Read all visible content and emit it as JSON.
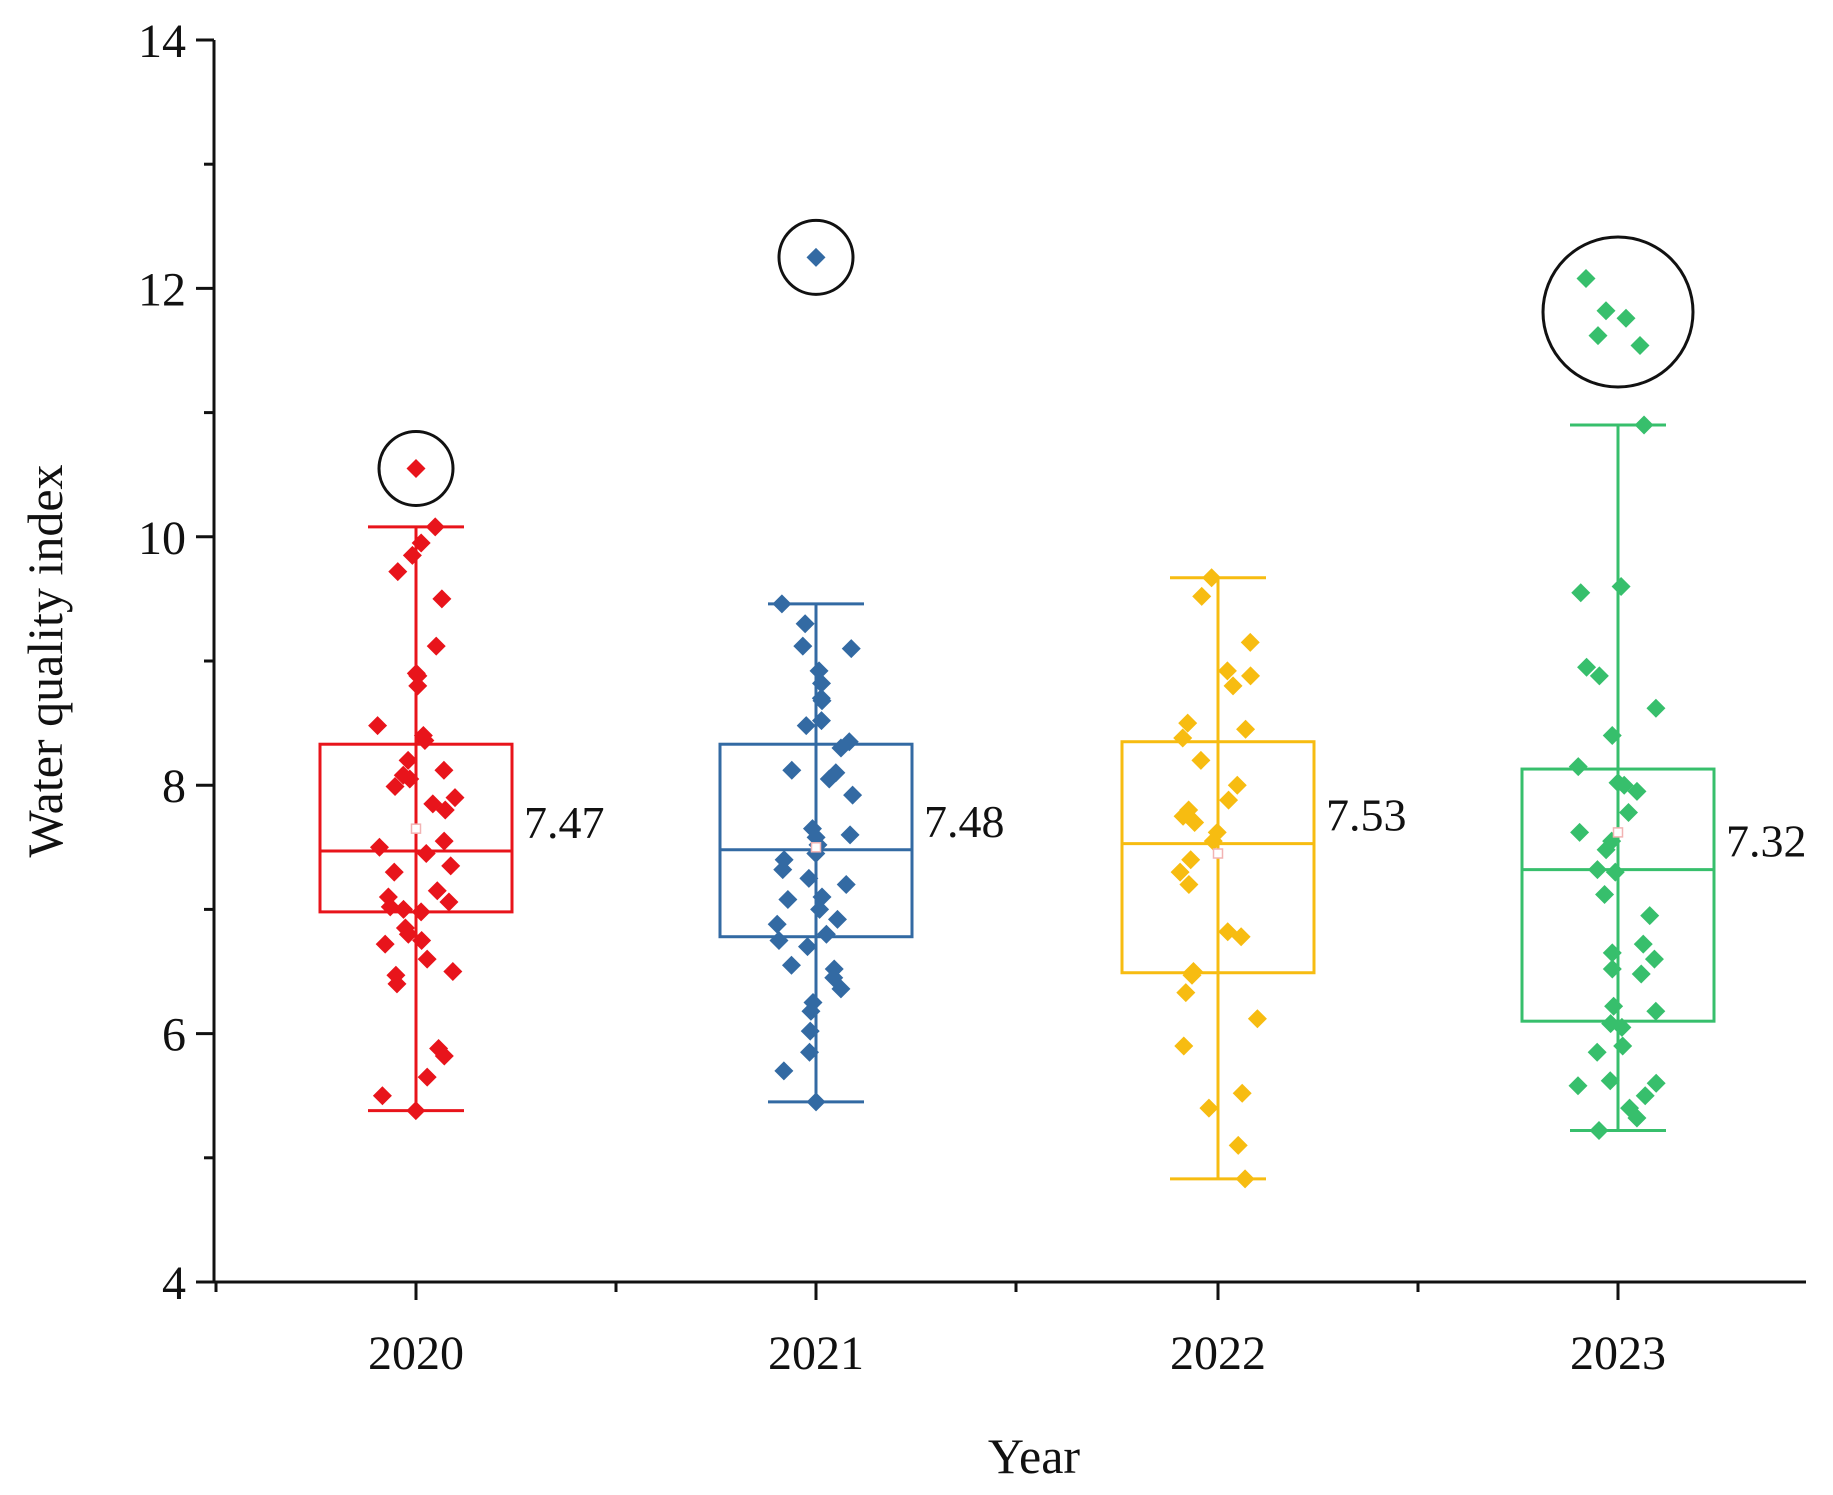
{
  "chart_data": {
    "type": "box",
    "title": "",
    "xlabel": "Year",
    "ylabel": "Water quality index",
    "ylim": [
      4,
      14
    ],
    "yticks": [
      "4",
      "6",
      "8",
      "10",
      "12",
      "14"
    ],
    "categories": [
      "2020",
      "2021",
      "2022",
      "2023"
    ],
    "series": [
      {
        "name": "2020",
        "color": "#e8141b",
        "whisker_low": 5.38,
        "q1": 6.98,
        "median": 7.47,
        "q3": 8.33,
        "whisker_high": 10.08,
        "mean": 7.65,
        "median_label": "7.47",
        "outliers": [
          10.55
        ],
        "points": [
          10.08,
          9.95,
          9.85,
          9.72,
          9.5,
          9.12,
          8.9,
          8.88,
          8.8,
          8.48,
          8.4,
          8.36,
          8.2,
          8.12,
          8.08,
          8.05,
          7.99,
          7.9,
          7.85,
          7.8,
          7.55,
          7.5,
          7.45,
          7.35,
          7.3,
          7.15,
          7.1,
          7.06,
          7.02,
          7.0,
          6.98,
          6.85,
          6.8,
          6.75,
          6.72,
          6.6,
          6.5,
          6.47,
          6.4,
          5.88,
          5.82,
          5.65,
          5.5,
          5.38
        ]
      },
      {
        "name": "2021",
        "color": "#336aa3",
        "whisker_low": 5.45,
        "q1": 6.78,
        "median": 7.48,
        "q3": 8.33,
        "whisker_high": 9.46,
        "mean": 7.5,
        "median_label": "7.48",
        "outliers": [
          12.25
        ],
        "points": [
          9.46,
          9.3,
          9.12,
          9.1,
          8.92,
          8.82,
          8.7,
          8.68,
          8.52,
          8.48,
          8.35,
          8.3,
          8.12,
          8.1,
          8.05,
          7.92,
          7.65,
          7.6,
          7.58,
          7.52,
          7.45,
          7.4,
          7.32,
          7.25,
          7.2,
          7.1,
          7.08,
          7.0,
          6.92,
          6.88,
          6.8,
          6.75,
          6.7,
          6.55,
          6.52,
          6.45,
          6.36,
          6.25,
          6.18,
          6.02,
          5.85,
          5.7,
          5.45
        ]
      },
      {
        "name": "2022",
        "color": "#f7bc11",
        "whisker_low": 4.83,
        "q1": 6.49,
        "median": 7.53,
        "q3": 8.35,
        "whisker_high": 9.67,
        "mean": 7.45,
        "median_label": "7.53",
        "outliers": [],
        "points": [
          9.67,
          9.52,
          9.15,
          8.92,
          8.88,
          8.8,
          8.5,
          8.45,
          8.38,
          8.2,
          8.0,
          7.88,
          7.8,
          7.75,
          7.7,
          7.62,
          7.55,
          7.4,
          7.3,
          7.2,
          6.82,
          6.78,
          6.5,
          6.47,
          6.33,
          6.12,
          5.9,
          5.52,
          5.4,
          5.1,
          4.83
        ]
      },
      {
        "name": "2023",
        "color": "#37bf6c",
        "whisker_low": 5.22,
        "q1": 6.1,
        "median": 7.32,
        "q3": 8.13,
        "whisker_high": 10.9,
        "mean": 7.62,
        "median_label": "7.32",
        "outliers": [
          12.08,
          11.82,
          11.76,
          11.62,
          11.54
        ],
        "points": [
          10.9,
          9.6,
          9.55,
          8.95,
          8.88,
          8.62,
          8.4,
          8.15,
          8.02,
          8.0,
          7.95,
          7.78,
          7.62,
          7.55,
          7.48,
          7.32,
          7.3,
          7.12,
          6.95,
          6.72,
          6.65,
          6.6,
          6.52,
          6.48,
          6.22,
          6.18,
          6.08,
          6.05,
          5.9,
          5.85,
          5.62,
          5.6,
          5.58,
          5.5,
          5.4,
          5.32,
          5.22
        ]
      }
    ]
  }
}
